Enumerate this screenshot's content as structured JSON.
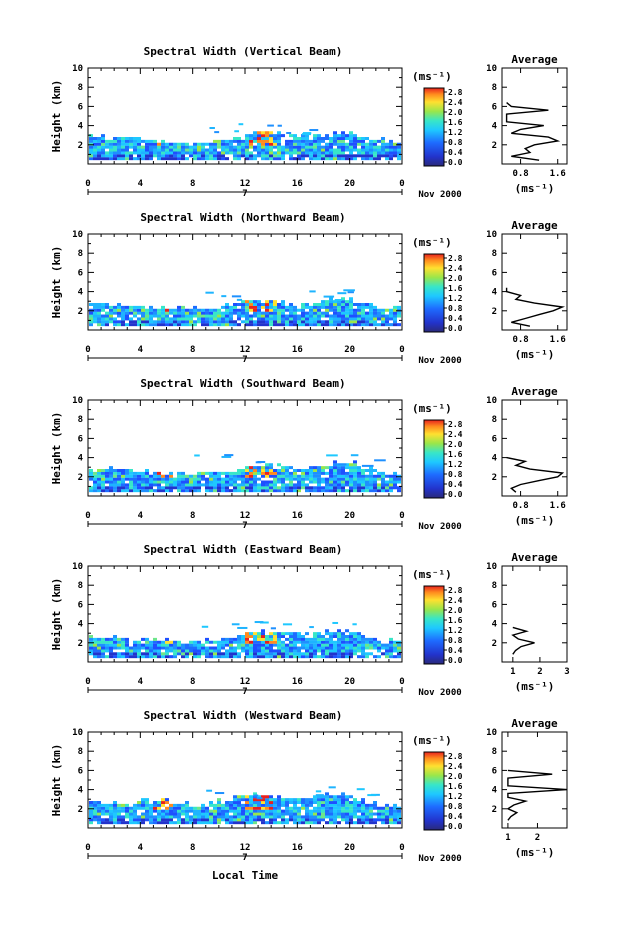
{
  "figure": {
    "x_axis_label": "Local Time",
    "date_label": "Nov 2000",
    "day_marker": "7"
  },
  "chart_data": [
    {
      "type": "heatmap",
      "title": "Spectral Width (Vertical Beam)",
      "ylabel": "Height (km)",
      "xlim": [
        0,
        24
      ],
      "ylim": [
        0,
        10
      ],
      "xticks": [
        "0",
        "4",
        "8",
        "12",
        "16",
        "20",
        "0"
      ],
      "yticks": [
        "2",
        "4",
        "6",
        "8",
        "10"
      ],
      "colorbar": {
        "unit": "(ms⁻¹)",
        "ticks": [
          "2.8",
          "2.4",
          "2.0",
          "1.6",
          "1.2",
          "0.8",
          "0.4",
          "0.0"
        ]
      },
      "data_top_km": [
        2.6,
        2.5,
        2.4,
        2.3,
        2.2,
        2.1,
        2.0,
        1.9,
        1.8,
        2.1,
        2.3,
        2.5,
        2.8,
        3.0,
        2.9,
        2.8,
        2.6,
        2.5,
        2.7,
        2.9,
        3.0,
        2.6,
        2.3,
        2.1,
        2.0
      ],
      "profile": {
        "title": "Average",
        "xlabel": "(ms⁻¹)",
        "xticks": [
          "0.8",
          "1.6"
        ],
        "xlim": [
          0.4,
          1.8
        ],
        "ylim": [
          0,
          10
        ],
        "heights": [
          0.4,
          0.8,
          1.2,
          1.6,
          2.0,
          2.4,
          2.8,
          3.2,
          3.6,
          4.0,
          4.4,
          4.8,
          5.2,
          5.6,
          6.0,
          6.4
        ],
        "values": [
          1.2,
          0.6,
          1.0,
          0.9,
          1.1,
          1.6,
          1.4,
          0.6,
          0.8,
          1.3,
          0.5,
          0.5,
          0.5,
          1.4,
          0.6,
          0.5
        ]
      }
    },
    {
      "type": "heatmap",
      "title": "Spectral Width (Northward Beam)",
      "ylabel": "Height (km)",
      "xlim": [
        0,
        24
      ],
      "ylim": [
        0,
        10
      ],
      "xticks": [
        "0",
        "4",
        "8",
        "12",
        "16",
        "20",
        "0"
      ],
      "yticks": [
        "2",
        "4",
        "6",
        "8",
        "10"
      ],
      "colorbar": {
        "unit": "(ms⁻¹)",
        "ticks": [
          "2.8",
          "2.4",
          "2.0",
          "1.6",
          "1.2",
          "0.8",
          "0.4",
          "0.0"
        ]
      },
      "data_top_km": [
        2.4,
        2.5,
        2.3,
        2.2,
        2.2,
        2.1,
        2.1,
        2.0,
        2.0,
        2.1,
        2.2,
        2.4,
        2.7,
        2.8,
        2.6,
        2.5,
        2.4,
        2.5,
        2.7,
        3.0,
        3.0,
        2.5,
        2.2,
        2.0,
        2.0
      ],
      "profile": {
        "title": "Average",
        "xlabel": "(ms⁻¹)",
        "xticks": [
          "0.8",
          "1.6"
        ],
        "xlim": [
          0.4,
          1.8
        ],
        "ylim": [
          0,
          10
        ],
        "heights": [
          0.4,
          0.8,
          1.2,
          1.6,
          2.0,
          2.4,
          2.8,
          3.2,
          3.6,
          4.0,
          4.4
        ],
        "values": [
          1.0,
          0.6,
          0.9,
          1.2,
          1.5,
          1.7,
          1.1,
          0.7,
          0.8,
          0.5,
          0.5
        ]
      }
    },
    {
      "type": "heatmap",
      "title": "Spectral Width (Southward Beam)",
      "ylabel": "Height (km)",
      "xlim": [
        0,
        24
      ],
      "ylim": [
        0,
        10
      ],
      "xticks": [
        "0",
        "4",
        "8",
        "12",
        "16",
        "20",
        "0"
      ],
      "yticks": [
        "2",
        "4",
        "6",
        "8",
        "10"
      ],
      "colorbar": {
        "unit": "(ms⁻¹)",
        "ticks": [
          "2.8",
          "2.4",
          "2.0",
          "1.6",
          "1.2",
          "0.8",
          "0.4",
          "0.0"
        ]
      },
      "data_top_km": [
        2.5,
        2.6,
        2.5,
        2.4,
        2.3,
        2.2,
        2.1,
        2.0,
        2.0,
        2.1,
        2.3,
        2.5,
        2.8,
        3.0,
        2.9,
        2.7,
        2.6,
        2.7,
        2.9,
        3.2,
        3.3,
        2.7,
        2.3,
        2.1,
        2.0
      ],
      "profile": {
        "title": "Average",
        "xlabel": "(ms⁻¹)",
        "xticks": [
          "0.8",
          "1.6"
        ],
        "xlim": [
          0.4,
          1.8
        ],
        "ylim": [
          0,
          10
        ],
        "heights": [
          0.4,
          0.8,
          1.2,
          1.6,
          2.0,
          2.4,
          2.8,
          3.2,
          3.6,
          4.0
        ],
        "values": [
          0.7,
          0.6,
          0.8,
          1.2,
          1.6,
          1.7,
          1.0,
          0.7,
          0.9,
          0.5
        ]
      }
    },
    {
      "type": "heatmap",
      "title": "Spectral Width (Eastward Beam)",
      "ylabel": "Height (km)",
      "xlim": [
        0,
        24
      ],
      "ylim": [
        0,
        10
      ],
      "xticks": [
        "0",
        "4",
        "8",
        "12",
        "16",
        "20",
        "0"
      ],
      "yticks": [
        "2",
        "4",
        "6",
        "8",
        "10"
      ],
      "colorbar": {
        "unit": "(ms⁻¹)",
        "ticks": [
          "2.8",
          "2.4",
          "2.0",
          "1.6",
          "1.2",
          "0.8",
          "0.4",
          "0.0"
        ]
      },
      "data_top_km": [
        2.4,
        2.3,
        2.2,
        2.2,
        2.1,
        2.0,
        2.0,
        1.9,
        1.9,
        2.0,
        2.2,
        2.4,
        2.8,
        3.2,
        3.0,
        2.8,
        2.6,
        2.6,
        2.8,
        3.0,
        3.0,
        2.5,
        2.2,
        2.0,
        2.0
      ],
      "profile": {
        "title": "Average",
        "xlabel": "(ms⁻¹)",
        "xticks": [
          "1",
          "2",
          "3"
        ],
        "xlim": [
          0.6,
          3.0
        ],
        "ylim": [
          0,
          10
        ],
        "heights": [
          0.8,
          1.2,
          1.6,
          2.0,
          2.4,
          2.8,
          3.2,
          3.6
        ],
        "values": [
          1.0,
          1.1,
          1.3,
          1.8,
          1.2,
          1.0,
          1.5,
          1.0
        ]
      }
    },
    {
      "type": "heatmap",
      "title": "Spectral Width (Westward Beam)",
      "ylabel": "Height (km)",
      "xlim": [
        0,
        24
      ],
      "ylim": [
        0,
        10
      ],
      "xticks": [
        "0",
        "4",
        "8",
        "12",
        "16",
        "20",
        "0"
      ],
      "yticks": [
        "2",
        "4",
        "6",
        "8",
        "10"
      ],
      "colorbar": {
        "unit": "(ms⁻¹)",
        "ticks": [
          "2.8",
          "2.4",
          "2.0",
          "1.6",
          "1.2",
          "0.8",
          "0.4",
          "0.0"
        ]
      },
      "data_top_km": [
        2.3,
        2.4,
        2.3,
        2.3,
        2.6,
        2.8,
        2.6,
        2.3,
        2.1,
        2.3,
        2.6,
        2.8,
        3.0,
        3.2,
        3.1,
        3.0,
        3.0,
        3.1,
        3.1,
        3.2,
        3.0,
        2.5,
        2.2,
        2.0,
        2.0
      ],
      "profile": {
        "title": "Average",
        "xlabel": "(ms⁻¹)",
        "xticks": [
          "1",
          "2"
        ],
        "xlim": [
          0.8,
          3.0
        ],
        "ylim": [
          0,
          10
        ],
        "heights": [
          0.8,
          1.2,
          1.6,
          2.0,
          2.4,
          2.8,
          3.2,
          3.6,
          4.0,
          4.4,
          4.8,
          5.2,
          5.6,
          6.0
        ],
        "values": [
          1.0,
          1.1,
          1.3,
          1.0,
          1.2,
          1.6,
          1.0,
          1.0,
          3.0,
          1.0,
          1.0,
          1.0,
          2.5,
          1.0
        ]
      }
    }
  ]
}
